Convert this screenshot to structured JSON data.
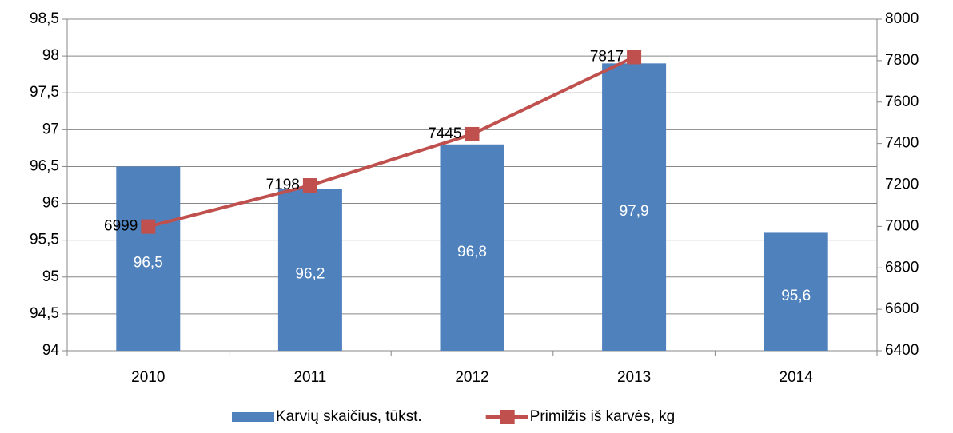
{
  "chart_data": {
    "type": "bar",
    "categories": [
      "2010",
      "2011",
      "2012",
      "2013",
      "2014"
    ],
    "series": [
      {
        "name": "Karvių skaičius, tūkst.",
        "type": "bar",
        "color": "#4f81bd",
        "values": [
          96.5,
          96.2,
          96.8,
          97.9,
          95.6
        ],
        "value_labels": [
          "96,5",
          "96,2",
          "96,8",
          "97,9",
          "95,6"
        ]
      },
      {
        "name": "Primilžis iš karvės, kg",
        "type": "line",
        "axis": "y2",
        "color": "#c0504d",
        "values": [
          6999,
          7198,
          7445,
          7817,
          null
        ]
      }
    ],
    "ylim": [
      94,
      98.5
    ],
    "yticks": [
      94,
      {
        "value": 94.5,
        "label": "94,5"
      },
      95,
      {
        "value": 95.5,
        "label": "95,5"
      },
      96,
      {
        "value": 96.5,
        "label": "96,5"
      },
      97,
      {
        "value": 97.5,
        "label": "97,5"
      },
      98,
      {
        "value": 98.5,
        "label": "98,5"
      }
    ],
    "y2lim": [
      6400,
      8000
    ],
    "y2ticks": [
      6400,
      6600,
      6800,
      7000,
      7200,
      7400,
      7600,
      7800,
      8000
    ],
    "grid": true,
    "legend": "bottom"
  }
}
